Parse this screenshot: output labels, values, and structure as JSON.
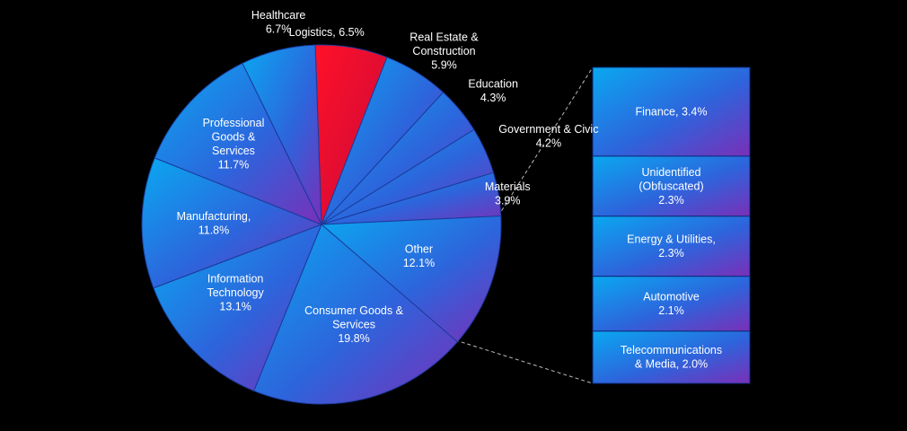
{
  "chart_data": {
    "type": "pie",
    "subtype": "pie-of-bar",
    "title": "",
    "grid": false,
    "legend": "none",
    "colors": {
      "background": "#000000",
      "slice_gradient_start": "#0aa8f0",
      "slice_gradient_mid": "#2d64dc",
      "slice_gradient_end": "#7a2fb8",
      "highlight_start": "#ff1028",
      "highlight_end": "#c80a3a",
      "highlight_label": "#ffff00",
      "label_text": "#ffffff",
      "connector_line": "#bbbbbb"
    },
    "slices": [
      {
        "label": [
          "Logistics, 6.5%"
        ],
        "value": 6.5,
        "highlight": true
      },
      {
        "label": [
          "Real Estate &",
          "Construction",
          "5.9%"
        ],
        "value": 5.9
      },
      {
        "label": [
          "Education",
          "4.3%"
        ],
        "value": 4.3
      },
      {
        "label": [
          "Government & Civic",
          "4.2%"
        ],
        "value": 4.2
      },
      {
        "label": [
          "Materials",
          "3.9%"
        ],
        "value": 3.9
      },
      {
        "label": [
          "Other",
          "12.1%"
        ],
        "value": 12.1,
        "exploded_to_bar": true
      },
      {
        "label": [
          "Consumer Goods &",
          "Services",
          "19.8%"
        ],
        "value": 19.8
      },
      {
        "label": [
          "Information",
          "Technology",
          "13.1%"
        ],
        "value": 13.1
      },
      {
        "label": [
          "Manufacturing,",
          "11.8%"
        ],
        "value": 11.8
      },
      {
        "label": [
          "Professional",
          "Goods &",
          "Services",
          "11.7%"
        ],
        "value": 11.7
      },
      {
        "label": [
          "Healthcare",
          "6.7%"
        ],
        "value": 6.7
      }
    ],
    "bar_breakdown": [
      {
        "label": [
          "Finance, 3.4%"
        ],
        "value": 3.4
      },
      {
        "label": [
          "Unidentified",
          "(Obfuscated)",
          "2.3%"
        ],
        "value": 2.3
      },
      {
        "label": [
          "Energy & Utilities,",
          "2.3%"
        ],
        "value": 2.3
      },
      {
        "label": [
          "Automotive",
          "2.1%"
        ],
        "value": 2.1
      },
      {
        "label": [
          "Telecommunications",
          "& Media, 2.0%"
        ],
        "value": 2.0
      }
    ]
  }
}
